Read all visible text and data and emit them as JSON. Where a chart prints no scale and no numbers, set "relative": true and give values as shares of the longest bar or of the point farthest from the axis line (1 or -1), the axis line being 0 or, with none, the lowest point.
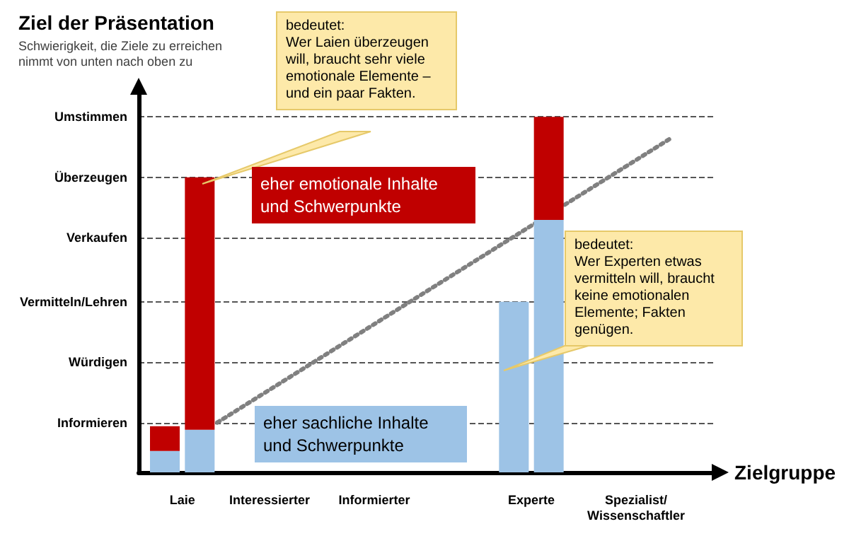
{
  "chart_data": {
    "type": "bar",
    "relative": true,
    "stacked": true,
    "title": "Ziel der Präsentation",
    "subtitle": "Schwierigkeit, die Ziele zu erreichen nimmt von unten nach oben zu",
    "xlabel": "Zielgruppe",
    "categories": [
      null,
      null,
      "Laie",
      null,
      null,
      null,
      null,
      "Interessierter",
      null,
      null,
      null,
      null,
      null,
      "Informierter",
      null,
      null,
      null,
      null,
      null,
      null,
      null,
      null,
      "Experte",
      null,
      null,
      null,
      null,
      null,
      "Spezialist/Wissenschaftler",
      null,
      null,
      null,
      null
    ],
    "series": [
      {
        "color": "#9dc3e6",
        "values": [
          null,
          0.06,
          null,
          0.12,
          null,
          null,
          null,
          null,
          null,
          null,
          null,
          null,
          null,
          null,
          null,
          null,
          null,
          null,
          null,
          null,
          null,
          0.48,
          null,
          0.71,
          null,
          null,
          null,
          null,
          null,
          null,
          null,
          null,
          null
        ]
      },
      {
        "color": "#c00000",
        "values": [
          null,
          0.07,
          null,
          0.71,
          null,
          null,
          null,
          null,
          null,
          null,
          null,
          null,
          null,
          null,
          null,
          null,
          null,
          null,
          null,
          null,
          null,
          null,
          null,
          0.29,
          null,
          null,
          null,
          null,
          null,
          null,
          null,
          null,
          null
        ]
      },
      {
        "type": "line",
        "color": "#808080",
        "line_style": "dotted",
        "marker": "none",
        "values": [
          null,
          null,
          null,
          null,
          0.14,
          null,
          null,
          null,
          null,
          null,
          null,
          null,
          null,
          null,
          null,
          null,
          null,
          null,
          null,
          null,
          null,
          null,
          null,
          null,
          null,
          null,
          null,
          null,
          null,
          null,
          0.94,
          null,
          null
        ]
      }
    ],
    "ref_lines": [
      {
        "axis": "y",
        "value": 0.14,
        "label": "Informieren",
        "line_style": "dashed"
      },
      {
        "axis": "y",
        "value": 0.31,
        "label": "Würdigen",
        "line_style": "dashed"
      },
      {
        "axis": "y",
        "value": 0.48,
        "label": "Vermitteln/Lehren",
        "line_style": "dashed"
      },
      {
        "axis": "y",
        "value": 0.66,
        "label": "Verkaufen",
        "line_style": "dashed"
      },
      {
        "axis": "y",
        "value": 0.83,
        "label": "Überzeugen",
        "line_style": "dashed"
      },
      {
        "axis": "y",
        "value": 1,
        "label": "Umstimmen",
        "line_style": "dashed"
      }
    ],
    "annotations": [
      "bedeutet:\nWer Laien überzeugen will, braucht sehr viele emotionale Elemente – und ein paar Fakten.",
      "eher emotionale Inhalte und Schwerpunkte",
      "bedeutet:\nWer Experten etwas vermitteln will, braucht keine emotionalen Elemente; Fakten genügen.",
      "eher sachliche Inhalte und Schwerpunkte"
    ]
  }
}
